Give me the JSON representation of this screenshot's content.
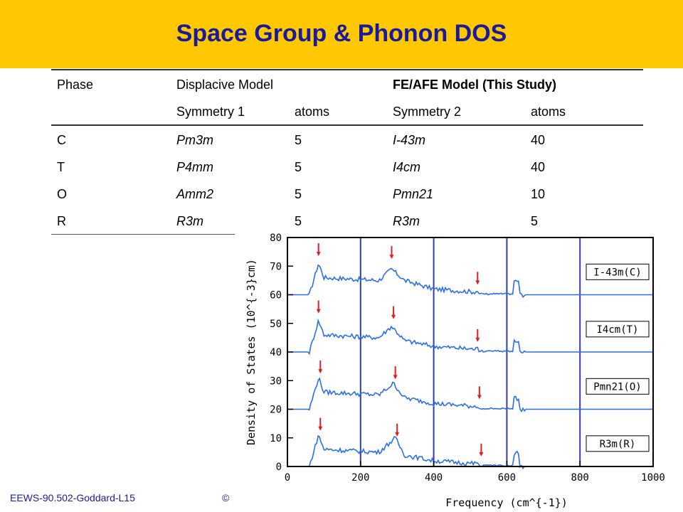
{
  "slide": {
    "title": "Space Group & Phonon DOS",
    "footer": "EEWS-90.502-Goddard-L15",
    "footer_symbol": "©"
  },
  "table": {
    "header1": [
      "Phase",
      "Displacive Model",
      "",
      "FE/AFE Model (This Study)",
      ""
    ],
    "header2": [
      "",
      "Symmetry 1",
      "atoms",
      "Symmetry 2",
      "atoms"
    ],
    "rows": [
      [
        "C",
        "Pm3m",
        "5",
        "I-43m",
        "40"
      ],
      [
        "T",
        "P4mm",
        "5",
        "I4cm",
        "40"
      ],
      [
        "O",
        "Amm2",
        "5",
        "Pmn21",
        "10"
      ],
      [
        "R",
        "R3m",
        "5",
        "R3m",
        "5"
      ]
    ]
  },
  "chart_data": {
    "type": "line",
    "xlabel": "Frequency (cm^{-1})",
    "ylabel": "Density of States (10^{-3}cm)",
    "xlim": [
      0,
      1000
    ],
    "ylim": [
      0,
      80
    ],
    "xticks": [
      0,
      200,
      400,
      600,
      800,
      1000
    ],
    "yticks": [
      0,
      10,
      20,
      30,
      40,
      50,
      60,
      70,
      80
    ],
    "vertical_lines_x": [
      200,
      400,
      600,
      800
    ],
    "colors": {
      "series": "#2a6fe6",
      "arrows": "#e02020",
      "frame": "#000000",
      "grid": "#3040a0"
    },
    "series": [
      {
        "name": "I-43m(C)",
        "offset": 60,
        "peaks": [
          {
            "x": 85,
            "y": 71
          },
          {
            "x": 100,
            "y": 66
          },
          {
            "x": 250,
            "y": 65
          },
          {
            "x": 285,
            "y": 69
          },
          {
            "x": 320,
            "y": 65
          },
          {
            "x": 400,
            "y": 62
          },
          {
            "x": 510,
            "y": 61
          },
          {
            "x": 635,
            "y": 65
          }
        ]
      },
      {
        "name": "I4cm(T)",
        "offset": 40,
        "peaks": [
          {
            "x": 85,
            "y": 51
          },
          {
            "x": 100,
            "y": 46
          },
          {
            "x": 250,
            "y": 45
          },
          {
            "x": 285,
            "y": 49
          },
          {
            "x": 320,
            "y": 44
          },
          {
            "x": 400,
            "y": 42
          },
          {
            "x": 510,
            "y": 41
          },
          {
            "x": 635,
            "y": 44
          }
        ]
      },
      {
        "name": "Pmn21(O)",
        "offset": 20,
        "peaks": [
          {
            "x": 85,
            "y": 31
          },
          {
            "x": 100,
            "y": 26
          },
          {
            "x": 250,
            "y": 25
          },
          {
            "x": 290,
            "y": 29
          },
          {
            "x": 320,
            "y": 24
          },
          {
            "x": 400,
            "y": 22
          },
          {
            "x": 510,
            "y": 21
          },
          {
            "x": 635,
            "y": 24
          }
        ]
      },
      {
        "name": "R3m(R)",
        "offset": 0,
        "peaks": [
          {
            "x": 85,
            "y": 11
          },
          {
            "x": 100,
            "y": 6
          },
          {
            "x": 250,
            "y": 5
          },
          {
            "x": 295,
            "y": 10
          },
          {
            "x": 320,
            "y": 4
          },
          {
            "x": 400,
            "y": 2
          },
          {
            "x": 510,
            "y": 1
          },
          {
            "x": 635,
            "y": 5
          }
        ]
      }
    ],
    "arrows": [
      {
        "x": 85,
        "y_top": 78,
        "y_bottom": 74
      },
      {
        "x": 285,
        "y_top": 77,
        "y_bottom": 73
      },
      {
        "x": 520,
        "y_top": 68,
        "y_bottom": 64
      },
      {
        "x": 85,
        "y_top": 58,
        "y_bottom": 54
      },
      {
        "x": 290,
        "y_top": 56,
        "y_bottom": 52
      },
      {
        "x": 520,
        "y_top": 48,
        "y_bottom": 44
      },
      {
        "x": 90,
        "y_top": 37,
        "y_bottom": 33
      },
      {
        "x": 295,
        "y_top": 35,
        "y_bottom": 31
      },
      {
        "x": 525,
        "y_top": 28,
        "y_bottom": 24
      },
      {
        "x": 90,
        "y_top": 17,
        "y_bottom": 13
      },
      {
        "x": 300,
        "y_top": 15,
        "y_bottom": 11
      },
      {
        "x": 530,
        "y_top": 8,
        "y_bottom": 4
      }
    ]
  }
}
